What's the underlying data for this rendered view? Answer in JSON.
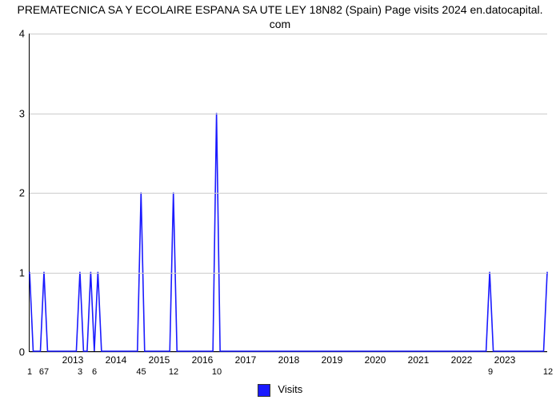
{
  "title_line1": "PREMATECNICA SA Y ECOLAIRE ESPANA SA UTE LEY 18N82 (Spain) Page visits 2024 en.datocapital.",
  "title_line2": "com",
  "title_fontsize": 14,
  "title_color": "#000000",
  "background_color": "#ffffff",
  "plot": {
    "type": "line",
    "x_domain": [
      0,
      144
    ],
    "y_domain": [
      0,
      4
    ],
    "yticks": [
      0,
      1,
      2,
      3,
      4
    ],
    "grid_color": "#cccccc",
    "axis_color": "#000000",
    "tick_font_size": 13,
    "line_color": "#1a1aff",
    "line_width": 1.6,
    "legend_label": "Visits",
    "legend_fontsize": 13,
    "year_labels": [
      {
        "x": 12,
        "label": "2013"
      },
      {
        "x": 24,
        "label": "2014"
      },
      {
        "x": 36,
        "label": "2015"
      },
      {
        "x": 48,
        "label": "2016"
      },
      {
        "x": 60,
        "label": "2017"
      },
      {
        "x": 72,
        "label": "2018"
      },
      {
        "x": 84,
        "label": "2019"
      },
      {
        "x": 96,
        "label": "2020"
      },
      {
        "x": 108,
        "label": "2021"
      },
      {
        "x": 120,
        "label": "2022"
      },
      {
        "x": 132,
        "label": "2023"
      }
    ],
    "value_labels": [
      {
        "x": 0,
        "label": "1"
      },
      {
        "x": 4,
        "label": "67"
      },
      {
        "x": 14,
        "label": "3"
      },
      {
        "x": 18,
        "label": "6"
      },
      {
        "x": 31,
        "label": "45"
      },
      {
        "x": 40,
        "label": "12"
      },
      {
        "x": 52,
        "label": "10"
      },
      {
        "x": 128,
        "label": "9"
      },
      {
        "x": 144,
        "label": "12"
      }
    ],
    "series": [
      [
        0,
        1
      ],
      [
        1,
        0
      ],
      [
        2,
        0
      ],
      [
        3,
        0
      ],
      [
        4,
        1
      ],
      [
        5,
        0
      ],
      [
        6,
        0
      ],
      [
        7,
        0
      ],
      [
        8,
        0
      ],
      [
        9,
        0
      ],
      [
        10,
        0
      ],
      [
        11,
        0
      ],
      [
        12,
        0
      ],
      [
        13,
        0
      ],
      [
        14,
        1
      ],
      [
        15,
        0
      ],
      [
        16,
        0
      ],
      [
        17,
        1
      ],
      [
        18,
        0
      ],
      [
        19,
        1
      ],
      [
        20,
        0
      ],
      [
        21,
        0
      ],
      [
        22,
        0
      ],
      [
        23,
        0
      ],
      [
        24,
        0
      ],
      [
        25,
        0
      ],
      [
        26,
        0
      ],
      [
        27,
        0
      ],
      [
        28,
        0
      ],
      [
        29,
        0
      ],
      [
        30,
        0
      ],
      [
        31,
        2
      ],
      [
        32,
        0
      ],
      [
        33,
        0
      ],
      [
        34,
        0
      ],
      [
        35,
        0
      ],
      [
        36,
        0
      ],
      [
        37,
        0
      ],
      [
        38,
        0
      ],
      [
        39,
        0
      ],
      [
        40,
        2
      ],
      [
        41,
        0
      ],
      [
        42,
        0
      ],
      [
        43,
        0
      ],
      [
        44,
        0
      ],
      [
        45,
        0
      ],
      [
        46,
        0
      ],
      [
        47,
        0
      ],
      [
        48,
        0
      ],
      [
        49,
        0
      ],
      [
        50,
        0
      ],
      [
        51,
        0
      ],
      [
        52,
        3
      ],
      [
        53,
        0
      ],
      [
        54,
        0
      ],
      [
        55,
        0
      ],
      [
        56,
        0
      ],
      [
        57,
        0
      ],
      [
        58,
        0
      ],
      [
        59,
        0
      ],
      [
        60,
        0
      ],
      [
        61,
        0
      ],
      [
        62,
        0
      ],
      [
        63,
        0
      ],
      [
        64,
        0
      ],
      [
        65,
        0
      ],
      [
        66,
        0
      ],
      [
        67,
        0
      ],
      [
        68,
        0
      ],
      [
        69,
        0
      ],
      [
        70,
        0
      ],
      [
        71,
        0
      ],
      [
        72,
        0
      ],
      [
        73,
        0
      ],
      [
        74,
        0
      ],
      [
        75,
        0
      ],
      [
        76,
        0
      ],
      [
        77,
        0
      ],
      [
        78,
        0
      ],
      [
        79,
        0
      ],
      [
        80,
        0
      ],
      [
        81,
        0
      ],
      [
        82,
        0
      ],
      [
        83,
        0
      ],
      [
        84,
        0
      ],
      [
        85,
        0
      ],
      [
        86,
        0
      ],
      [
        87,
        0
      ],
      [
        88,
        0
      ],
      [
        89,
        0
      ],
      [
        90,
        0
      ],
      [
        91,
        0
      ],
      [
        92,
        0
      ],
      [
        93,
        0
      ],
      [
        94,
        0
      ],
      [
        95,
        0
      ],
      [
        96,
        0
      ],
      [
        97,
        0
      ],
      [
        98,
        0
      ],
      [
        99,
        0
      ],
      [
        100,
        0
      ],
      [
        101,
        0
      ],
      [
        102,
        0
      ],
      [
        103,
        0
      ],
      [
        104,
        0
      ],
      [
        105,
        0
      ],
      [
        106,
        0
      ],
      [
        107,
        0
      ],
      [
        108,
        0
      ],
      [
        109,
        0
      ],
      [
        110,
        0
      ],
      [
        111,
        0
      ],
      [
        112,
        0
      ],
      [
        113,
        0
      ],
      [
        114,
        0
      ],
      [
        115,
        0
      ],
      [
        116,
        0
      ],
      [
        117,
        0
      ],
      [
        118,
        0
      ],
      [
        119,
        0
      ],
      [
        120,
        0
      ],
      [
        121,
        0
      ],
      [
        122,
        0
      ],
      [
        123,
        0
      ],
      [
        124,
        0
      ],
      [
        125,
        0
      ],
      [
        126,
        0
      ],
      [
        127,
        0
      ],
      [
        128,
        1
      ],
      [
        129,
        0
      ],
      [
        130,
        0
      ],
      [
        131,
        0
      ],
      [
        132,
        0
      ],
      [
        133,
        0
      ],
      [
        134,
        0
      ],
      [
        135,
        0
      ],
      [
        136,
        0
      ],
      [
        137,
        0
      ],
      [
        138,
        0
      ],
      [
        139,
        0
      ],
      [
        140,
        0
      ],
      [
        141,
        0
      ],
      [
        142,
        0
      ],
      [
        143,
        0
      ],
      [
        144,
        1
      ]
    ]
  }
}
